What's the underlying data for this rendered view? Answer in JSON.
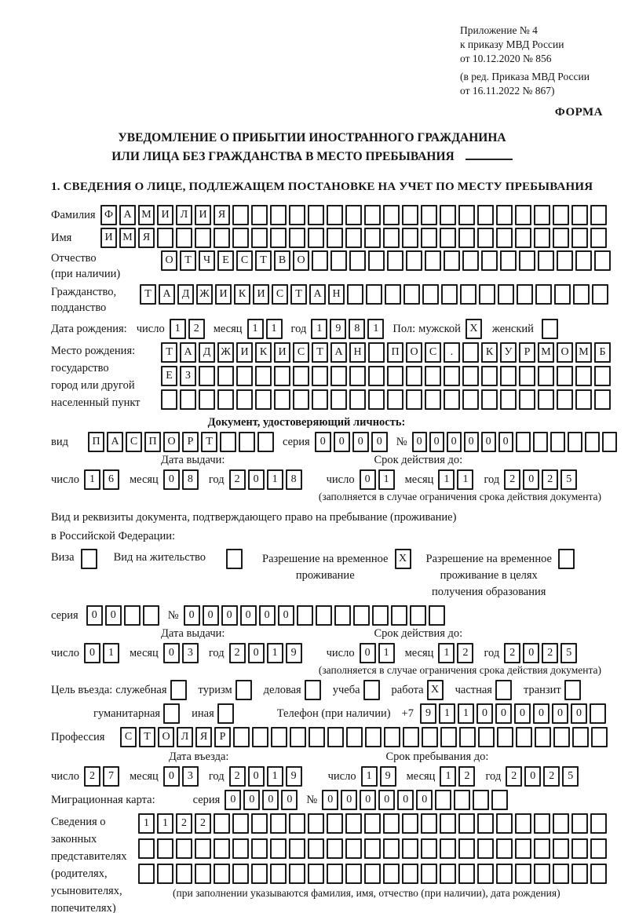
{
  "header": {
    "appendix": [
      "Приложение № 4",
      "к приказу МВД России",
      "от 10.12.2020 № 856"
    ],
    "revision": [
      "(в ред. Приказа МВД России",
      "от 16.11.2022 № 867)"
    ],
    "form_label": "ФОРМА"
  },
  "title": {
    "line1": "УВЕДОМЛЕНИЕ О ПРИБЫТИИ ИНОСТРАННОГО ГРАЖДАНИНА",
    "line2": "ИЛИ ЛИЦА БЕЗ ГРАЖДАНСТВА В МЕСТО ПРЕБЫВАНИЯ"
  },
  "section1_heading": "1. СВЕДЕНИЯ О ЛИЦЕ, ПОДЛЕЖАЩЕМ ПОСТАНОВКЕ НА УЧЕТ ПО МЕСТУ ПРЕБЫВАНИЯ",
  "lbl": {
    "day": "число",
    "month": "месяц",
    "year": "год",
    "series": "серия",
    "number": "№",
    "issue": "Дата выдачи:",
    "validity": "Срок действия до:",
    "validity_note": "(заполняется в случае ограничения срока действия документа)"
  },
  "person": {
    "surname": {
      "label": "Фамилия",
      "value": "ФАМИЛИЯ",
      "total": 27
    },
    "given_name": {
      "label": "Имя",
      "value": "ИМЯ",
      "total": 27
    },
    "patronymic": {
      "label1": "Отчество",
      "label2": "(при наличии)",
      "value": "ОТЧЕСТВО",
      "total": 24
    },
    "citizenship": {
      "label1": "Гражданство,",
      "label2": "подданство",
      "value": "ТАДЖИКИСТАН",
      "total": 25
    },
    "birth": {
      "label": "Дата рождения:",
      "day": {
        "value": "12",
        "total": 2
      },
      "month": {
        "value": "11",
        "total": 2
      },
      "year": {
        "value": "1981",
        "total": 4
      }
    },
    "sex": {
      "label": "Пол: ",
      "male_label": "мужской",
      "male": {
        "value": "X",
        "total": 1
      },
      "female_label": "женский",
      "female": {
        "value": "",
        "total": 1
      }
    },
    "birthplace": {
      "labels": [
        "Место рождения:",
        "государство",
        "город или другой",
        "населенный пункт"
      ],
      "row1": {
        "value": "ТАДЖИКИСТАН ПОС. КУРМОМБ",
        "total": 24
      },
      "row2": {
        "value": "ЕЗ",
        "total": 24
      },
      "row3": {
        "value": "",
        "total": 24
      }
    }
  },
  "identity_doc": {
    "heading": "Документ, удостоверяющий личность:",
    "type_label": "вид",
    "type": {
      "value": "ПАСПОРТ",
      "total": 10
    },
    "series": {
      "value": "0000",
      "total": 4
    },
    "number": {
      "value": "000000",
      "total": 12
    },
    "issue": {
      "day": {
        "value": "16",
        "total": 2
      },
      "month": {
        "value": "08",
        "total": 2
      },
      "year": {
        "value": "2018",
        "total": 4
      }
    },
    "validity": {
      "day": {
        "value": "01",
        "total": 2
      },
      "month": {
        "value": "11",
        "total": 2
      },
      "year": {
        "value": "2025",
        "total": 4
      }
    }
  },
  "residence_doc": {
    "line1": "Вид и реквизиты документа, подтверждающего право на пребывание (проживание)",
    "line2": "в Российской Федерации:",
    "visa_label": "Виза",
    "visa": {
      "value": "",
      "total": 1
    },
    "residence_label": "Вид на жительство",
    "residence": {
      "value": "",
      "total": 1
    },
    "temp_line1": "Разрешение на временное",
    "temp_line2": "проживание",
    "temp": {
      "value": "X",
      "total": 1
    },
    "edu_line1": "Разрешение на временное",
    "edu_line2": "проживание в целях",
    "edu_line3": "получения образования",
    "edu": {
      "value": "",
      "total": 1
    },
    "series": {
      "value": "00",
      "total": 4
    },
    "number": {
      "value": "000000",
      "total": 14
    },
    "issue": {
      "day": {
        "value": "01",
        "total": 2
      },
      "month": {
        "value": "03",
        "total": 2
      },
      "year": {
        "value": "2019",
        "total": 4
      }
    },
    "validity": {
      "day": {
        "value": "01",
        "total": 2
      },
      "month": {
        "value": "12",
        "total": 2
      },
      "year": {
        "value": "2025",
        "total": 4
      }
    }
  },
  "purpose": {
    "label": "Цель въезда:",
    "items": [
      {
        "label": "служебная",
        "box": {
          "value": "",
          "total": 1
        }
      },
      {
        "label": "туризм",
        "box": {
          "value": "",
          "total": 1
        }
      },
      {
        "label": "деловая",
        "box": {
          "value": "",
          "total": 1
        }
      },
      {
        "label": "учеба",
        "box": {
          "value": "",
          "total": 1
        }
      },
      {
        "label": "работа",
        "box": {
          "value": "X",
          "total": 1
        }
      },
      {
        "label": "частная",
        "box": {
          "value": "",
          "total": 1
        }
      },
      {
        "label": "транзит",
        "box": {
          "value": "",
          "total": 1
        }
      }
    ],
    "row2": [
      {
        "label": "гуманитарная",
        "box": {
          "value": "",
          "total": 1
        }
      },
      {
        "label": "иная",
        "box": {
          "value": "",
          "total": 1
        }
      }
    ]
  },
  "phone": {
    "label": "Телефон (при наличии)",
    "prefix": "+7",
    "number": {
      "value": "911000000",
      "total": 10
    }
  },
  "profession": {
    "label": "Профессия",
    "value": "СТОЛЯР",
    "total": 26
  },
  "entry": {
    "date_label": "Дата въезда:",
    "date": {
      "day": {
        "value": "27",
        "total": 2
      },
      "month": {
        "value": "03",
        "total": 2
      },
      "year": {
        "value": "2019",
        "total": 4
      }
    },
    "stay_label": "Срок пребывания до:",
    "stay": {
      "day": {
        "value": "19",
        "total": 2
      },
      "month": {
        "value": "12",
        "total": 2
      },
      "year": {
        "value": "2025",
        "total": 4
      }
    }
  },
  "migration_card": {
    "label": "Миграционная карта:",
    "series": {
      "value": "0000",
      "total": 4
    },
    "number": {
      "value": "000000",
      "total": 10
    }
  },
  "representatives": {
    "labels": [
      "Сведения о",
      "законных",
      "представителях",
      "(родителях,",
      "усыновителях,",
      "попечителях)"
    ],
    "row1": {
      "value": "1122",
      "total": 25
    },
    "row2": {
      "value": "",
      "total": 25
    },
    "row3": {
      "value": "",
      "total": 25
    },
    "note": "(при заполнении указываются фамилия, имя, отчество (при наличии), дата рождения)"
  }
}
